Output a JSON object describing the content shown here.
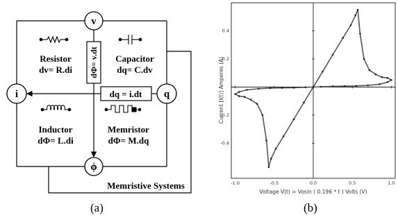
{
  "diagram": {
    "nodes": {
      "v": "v",
      "i": "i",
      "q": "q",
      "phi": "ϕ"
    },
    "links": {
      "top": "dΦ= v.dt",
      "middle": "dq = i.dt"
    },
    "elements": {
      "resistor": {
        "name": "Resistor",
        "eq": "dv= R.di"
      },
      "capacitor": {
        "name": "Capacitor",
        "eq": "dq= C.dv"
      },
      "inductor": {
        "name": "Inductor",
        "eq": "dΦ= L.di"
      },
      "memristor": {
        "name": "Memristor",
        "eq": "dΦ= M.dq"
      }
    },
    "footer": "Memristive Systems"
  },
  "chart_data": {
    "type": "line",
    "title": "",
    "xlabel": "Voltage V(t) = Vosin ( 0.196 * t ) Volts (V)",
    "ylabel": "Current [I(t)] Amperes (A)",
    "xlim": [
      -1.05,
      1.05
    ],
    "ylim": [
      -0.65,
      0.6
    ],
    "xticks": [
      -1.0,
      -0.5,
      0.0,
      0.5,
      1.0
    ],
    "xtick_labels": [
      "-1.0",
      "-0.5",
      "0.0",
      "0.5",
      "1.0"
    ],
    "yticks": [
      -0.4,
      -0.2,
      0.2,
      0.4
    ],
    "ytick_labels": [
      "-0.4",
      "-0.2",
      "0.2",
      "0.4"
    ],
    "grid": false,
    "series": [
      {
        "name": "",
        "x": [
          0.0,
          0.12,
          0.25,
          0.38,
          0.48,
          0.54,
          0.57,
          0.6,
          0.65,
          0.72,
          0.8,
          0.88,
          0.95,
          1.0,
          0.95,
          0.85,
          0.7,
          0.55,
          0.4,
          0.25,
          0.1,
          0.0,
          -0.12,
          -0.25,
          -0.38,
          -0.48,
          -0.54,
          -0.57,
          -0.6,
          -0.65,
          -0.72,
          -0.8,
          -0.88,
          -0.95,
          -1.0,
          -0.95,
          -0.85,
          -0.7,
          -0.55,
          -0.4,
          -0.25,
          -0.1,
          0.0
        ],
        "y": [
          0.0,
          0.11,
          0.23,
          0.35,
          0.44,
          0.51,
          0.55,
          0.38,
          0.2,
          0.12,
          0.09,
          0.07,
          0.065,
          0.05,
          0.035,
          0.02,
          0.012,
          0.008,
          0.006,
          0.005,
          0.002,
          0.0,
          -0.11,
          -0.23,
          -0.35,
          -0.44,
          -0.51,
          -0.57,
          -0.38,
          -0.2,
          -0.12,
          -0.09,
          -0.07,
          -0.065,
          -0.05,
          -0.035,
          -0.02,
          -0.012,
          -0.008,
          -0.006,
          -0.005,
          -0.002,
          0.0
        ]
      }
    ]
  },
  "captions": {
    "a": "(a)",
    "b": "(b)"
  }
}
